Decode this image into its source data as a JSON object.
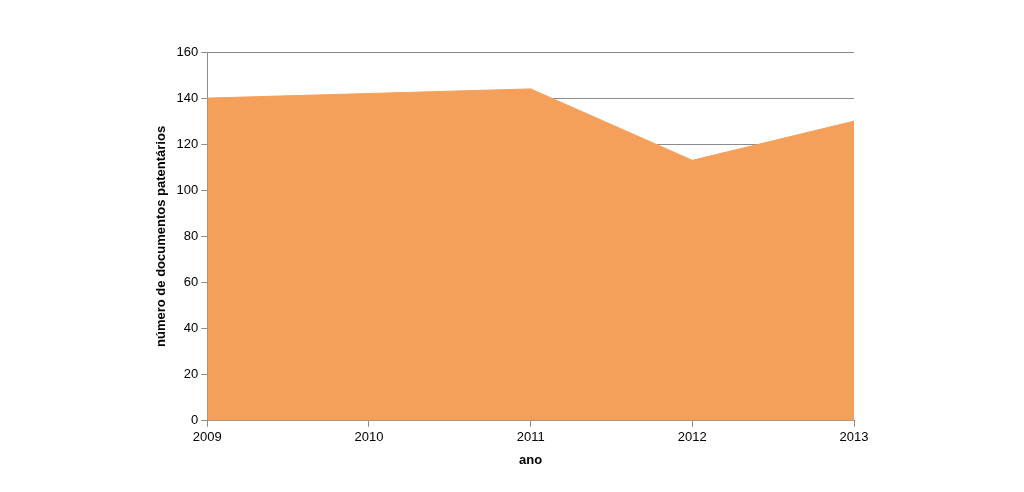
{
  "chart_data": {
    "type": "area",
    "x_label": "ano",
    "y_label": "número de documentos patentários",
    "categories": [
      "2009",
      "2010",
      "2011",
      "2012",
      "2013"
    ],
    "values": [
      140,
      142,
      144,
      113,
      130
    ],
    "color": "#f5a05a",
    "ylim": [
      0,
      160
    ],
    "yticks": [
      0,
      20,
      40,
      60,
      80,
      100,
      120,
      140,
      160
    ],
    "grid": true
  }
}
